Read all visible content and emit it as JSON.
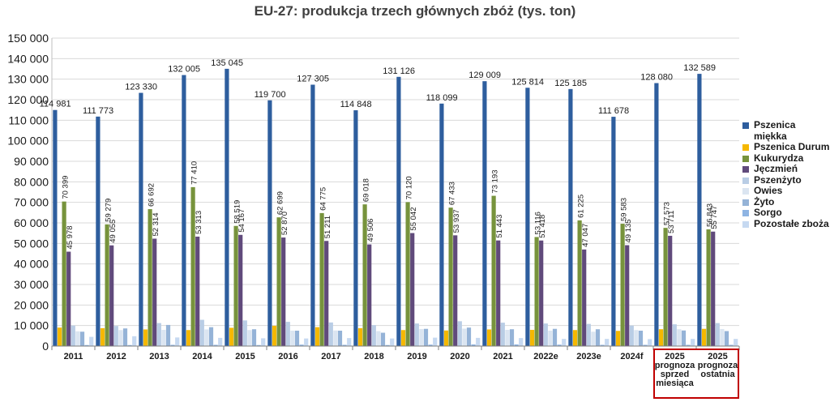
{
  "chart_data": {
    "type": "bar",
    "title": "EU-27: produkcja trzech głównych zbóż (tys. ton)",
    "categories": [
      "2011",
      "2012",
      "2013",
      "2014",
      "2015",
      "2016",
      "2017",
      "2018",
      "2019",
      "2020",
      "2021",
      "2022e",
      "2023e",
      "2024f",
      "2025 prognoza sprzed miesiąca",
      "2025 prognoza ostatnia"
    ],
    "ylim": [
      0,
      150000
    ],
    "yticks": [
      "0",
      "10 000",
      "20 000",
      "30 000",
      "40 000",
      "50 000",
      "60 000",
      "70 000",
      "80 000",
      "90 000",
      "100 000",
      "110 000",
      "120 000",
      "130 000",
      "140 000",
      "150 000"
    ],
    "grid": true,
    "legend_position": "right",
    "highlighted_categories": [
      "2025 prognoza sprzed miesiąca",
      "2025 prognoza ostatnia"
    ],
    "highlight_color": "#c00000",
    "series": [
      {
        "name": "Pszenica miękka",
        "color": "#2e5e9e",
        "values": [
          114981,
          111773,
          123330,
          132005,
          135045,
          119700,
          127305,
          114848,
          131126,
          118099,
          129009,
          125814,
          125185,
          111678,
          128080,
          132589
        ],
        "labels": [
          "114 981",
          "111 773",
          "123 330",
          "132 005",
          "135 045",
          "119 700",
          "127 305",
          "114 848",
          "131 126",
          "118 099",
          "129 009",
          "125 814",
          "125 185",
          "111 678",
          "128 080",
          "132 589"
        ]
      },
      {
        "name": "Pszenica Durum",
        "color": "#f5b800",
        "values": [
          9000,
          8700,
          8100,
          7800,
          8900,
          9900,
          9200,
          8700,
          7800,
          7600,
          8100,
          7900,
          7800,
          7400,
          8200,
          8400
        ],
        "labels": []
      },
      {
        "name": "Kukurydza",
        "color": "#77933c",
        "values": [
          70399,
          59279,
          66692,
          77410,
          58519,
          62699,
          64775,
          69018,
          70120,
          67433,
          73193,
          53116,
          61225,
          59583,
          57573,
          56843
        ],
        "labels": [
          "70 399",
          "59 279",
          "66 692",
          "77 410",
          "58 519",
          "62 699",
          "64 775",
          "69 018",
          "70 120",
          "67 433",
          "73 193",
          "53 116",
          "61 225",
          "59 583",
          "57 573",
          "56 843"
        ]
      },
      {
        "name": "Jęczmień",
        "color": "#604a7b",
        "values": [
          45978,
          49055,
          52314,
          53313,
          54167,
          52870,
          51211,
          49506,
          55042,
          53937,
          51443,
          51418,
          47047,
          49135,
          53711,
          55747
        ],
        "labels": [
          "45 978",
          "49 055",
          "52 314",
          "53 313",
          "54 167",
          "52 870",
          "51 211",
          "49 506",
          "55 042",
          "53 937",
          "51 443",
          "51 418",
          "47 047",
          "49 135",
          "53 711",
          "55 747"
        ]
      },
      {
        "name": "Pszenżyto",
        "color": "#b9cde5",
        "values": [
          10000,
          9800,
          11200,
          12800,
          12500,
          11800,
          11500,
          10200,
          11000,
          12100,
          11400,
          11000,
          10800,
          10000,
          10600,
          11200
        ],
        "labels": []
      },
      {
        "name": "Owies",
        "color": "#dbe5f1",
        "values": [
          7200,
          7800,
          7900,
          8100,
          7800,
          7500,
          7600,
          7300,
          8300,
          8500,
          7900,
          7500,
          7000,
          7800,
          8200,
          8300
        ],
        "labels": []
      },
      {
        "name": "Żyto",
        "color": "#95b3d7",
        "values": [
          7000,
          8600,
          10300,
          9200,
          8200,
          7500,
          7500,
          6500,
          8400,
          9000,
          8200,
          8400,
          8200,
          7500,
          7600,
          7300
        ],
        "labels": []
      },
      {
        "name": "Sorgo",
        "color": "#8eb4e3",
        "values": [
          500,
          500,
          600,
          600,
          500,
          700,
          600,
          500,
          700,
          800,
          800,
          700,
          600,
          600,
          600,
          600
        ],
        "labels": []
      },
      {
        "name": "Pozostałe zboża",
        "color": "#c6d9f1",
        "values": [
          4500,
          4800,
          4200,
          4000,
          3800,
          3700,
          3900,
          3700,
          4100,
          4000,
          3900,
          3500,
          3500,
          3400,
          3500,
          3500
        ],
        "labels": []
      }
    ]
  },
  "legend": {
    "items": [
      {
        "label": "Pszenica miękka",
        "color": "#2e5e9e"
      },
      {
        "label": "Pszenica Durum",
        "color": "#f5b800"
      },
      {
        "label": "Kukurydza",
        "color": "#77933c"
      },
      {
        "label": "Jęczmień",
        "color": "#604a7b"
      },
      {
        "label": "Pszenżyto",
        "color": "#b9cde5"
      },
      {
        "label": "Owies",
        "color": "#dbe5f1"
      },
      {
        "label": "Żyto",
        "color": "#95b3d7"
      },
      {
        "label": "Sorgo",
        "color": "#8eb4e3"
      },
      {
        "label": "Pozostałe zboża",
        "color": "#c6d9f1"
      }
    ]
  }
}
